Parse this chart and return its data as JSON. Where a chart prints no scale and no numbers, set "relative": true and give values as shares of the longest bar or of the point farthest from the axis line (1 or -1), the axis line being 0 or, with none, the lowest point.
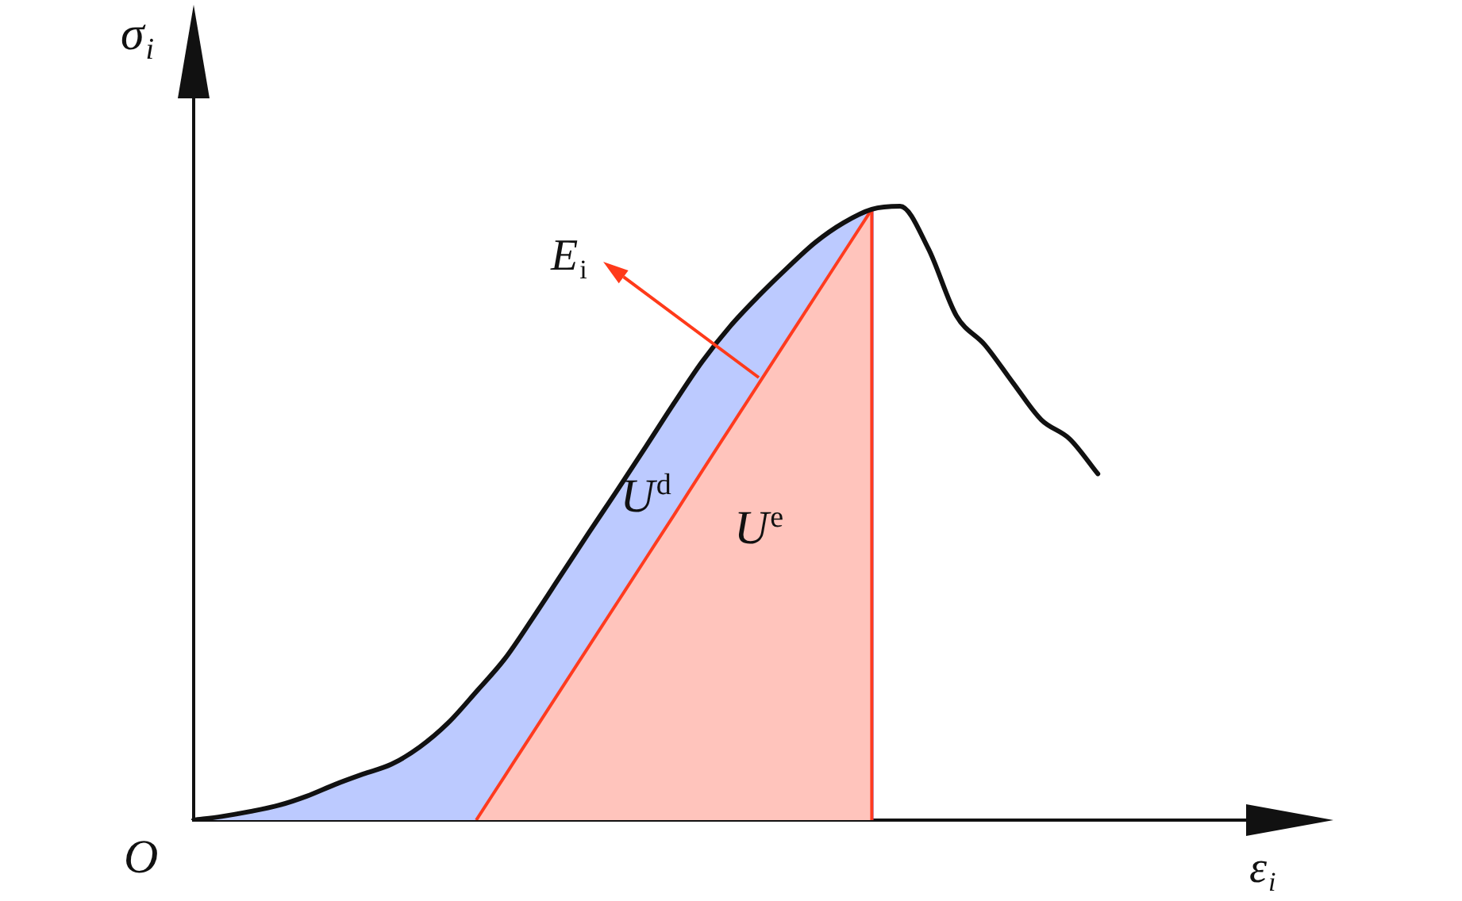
{
  "chart_data": {
    "type": "line",
    "relative": true,
    "xlabel": "ε$_{i}$",
    "ylabel": "σ$_{i}$",
    "annotations": [
      "E$_{i}$",
      "O"
    ],
    "categories": [
      null,
      null,
      null,
      null,
      null,
      null,
      null,
      null,
      null,
      null,
      null,
      null,
      null,
      null,
      null,
      null,
      null,
      null,
      null,
      null,
      null,
      null,
      null,
      null,
      null,
      null,
      null,
      null,
      null,
      null,
      null,
      null,
      null,
      null,
      null,
      null,
      null,
      null,
      null,
      null,
      null
    ],
    "series": [
      {
        "type": "line",
        "color": "#111111",
        "values": [
          0,
          0.006,
          0.014,
          0.024,
          0.039,
          0.058,
          0.075,
          0.091,
          0.119,
          0.158,
          0.209,
          0.262,
          0.329,
          0.399,
          0.469,
          0.538,
          0.608,
          0.679,
          0.747,
          0.805,
          0.854,
          0.899,
          0.941,
          0.973,
          0.995,
          1,
          0.931,
          0.821,
          0.774,
          0.712,
          0.652,
          0.621,
          0.564,
          null,
          null,
          null,
          null,
          null,
          null,
          null,
          null
        ]
      },
      {
        "type": "area",
        "name": "U$^{e}$",
        "color": "#ff3b1f",
        "values": [
          null,
          null,
          null,
          null,
          null,
          null,
          null,
          null,
          null,
          null,
          0,
          0.071,
          0.142,
          0.213,
          0.284,
          0.355,
          0.426,
          0.497,
          0.569,
          0.64,
          0.711,
          0.782,
          0.853,
          0.924,
          0.995,
          null,
          null,
          null,
          null,
          null,
          null,
          null,
          null,
          null,
          null,
          null,
          null,
          null,
          null,
          null,
          null
        ]
      },
      {
        "type": "area",
        "name": "U$^{d}$",
        "color": "#1f4dff",
        "values": [
          0,
          0.006,
          0.014,
          0.024,
          0.039,
          0.058,
          0.075,
          0.091,
          0.119,
          0.158,
          0.209,
          0.262,
          0.329,
          0.399,
          0.469,
          0.538,
          0.608,
          0.679,
          0.747,
          0.805,
          0.854,
          0.899,
          0.941,
          0.973,
          0.995,
          null,
          null,
          null,
          null,
          null,
          null,
          null,
          null,
          null,
          null,
          null,
          null,
          null,
          null,
          null,
          null
        ]
      }
    ]
  }
}
